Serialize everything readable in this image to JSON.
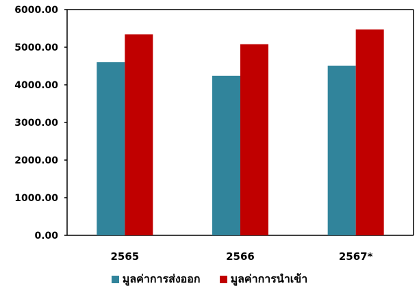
{
  "chart_data": {
    "type": "bar",
    "categories": [
      "2565",
      "2566",
      "2567*"
    ],
    "series": [
      {
        "name": "มูลค่าการส่งออก",
        "values": [
          4600,
          4240,
          4510
        ],
        "color": "#31849B"
      },
      {
        "name": "มูลค่าการนำเข้า",
        "values": [
          5340,
          5080,
          5470
        ],
        "color": "#C00000"
      }
    ],
    "ylim": [
      0,
      6000
    ],
    "yticks": [
      "0.00",
      "1000.00",
      "2000.00",
      "3000.00",
      "4000.00",
      "5000.00",
      "6000.00"
    ],
    "ytick_values": [
      0,
      1000,
      2000,
      3000,
      4000,
      5000,
      6000
    ],
    "grid": false,
    "legend_position": "bottom"
  }
}
